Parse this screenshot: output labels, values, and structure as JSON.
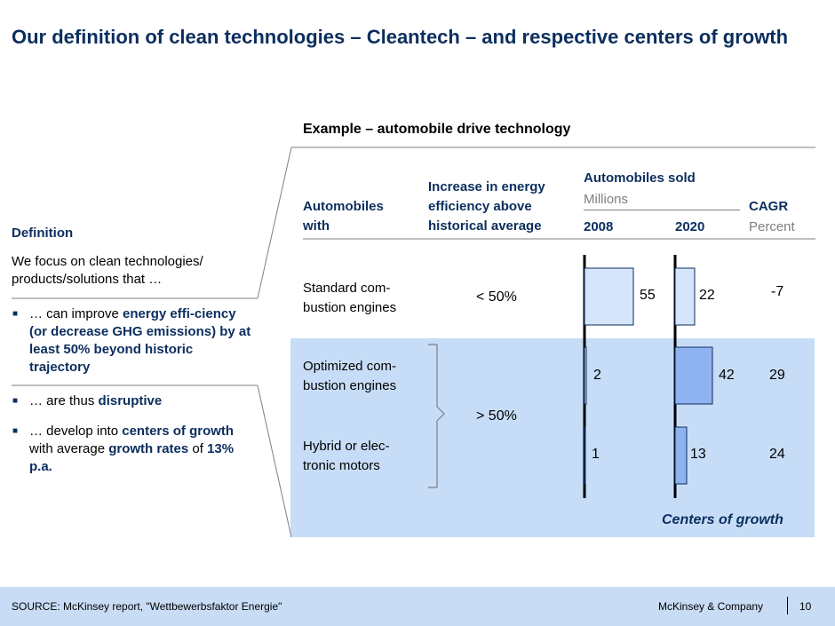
{
  "title": "Our definition of clean technologies – Cleantech – and respective centers of growth",
  "example_label": "Example – automobile drive technology",
  "headers": {
    "col1": "Automobiles with",
    "col2": "Increase in energy efficiency above historical average",
    "col3": "Automobiles sold",
    "col3_unit": "Millions",
    "year1": "2008",
    "year2": "2020",
    "col4": "CAGR",
    "col4_unit": "Percent"
  },
  "definition": {
    "title": "Definition",
    "intro": "We focus on clean technologies/ products/solutions that …",
    "bullets": [
      {
        "pre": "… can improve ",
        "hl": "energy effi-ciency (or decrease GHG emissions) by at least 50% beyond historic trajectory",
        "post": ""
      },
      {
        "pre": "… are thus ",
        "hl": "disruptive",
        "post": ""
      },
      {
        "pre": "… develop into ",
        "hl": "centers of growth",
        "post": " with average ",
        "hl2": "growth rates",
        "post2": " of ",
        "hl3": "13% p.a."
      }
    ]
  },
  "rows": [
    {
      "label_line1": "Standard com-",
      "label_line2": "bustion engines",
      "efficiency": "< 50%",
      "sold_2008": "55",
      "sold_2020": "22",
      "cagr": "-7"
    },
    {
      "label_line1": "Optimized com-",
      "label_line2": "bustion engines",
      "sold_2008": "2",
      "sold_2020": "42",
      "cagr": "29"
    },
    {
      "label_line1": "Hybrid or elec-",
      "label_line2": "tronic motors",
      "sold_2008": "1",
      "sold_2020": "13",
      "cagr": "24"
    }
  ],
  "group_efficiency": "> 50%",
  "centers_label": "Centers of growth",
  "chart_data": {
    "type": "bar",
    "categories": [
      "Standard combustion engines",
      "Optimized combustion engines",
      "Hybrid or electronic motors"
    ],
    "series": [
      {
        "name": "2008",
        "values": [
          55,
          2,
          1
        ]
      },
      {
        "name": "2020",
        "values": [
          22,
          42,
          13
        ]
      }
    ],
    "cagr_percent": [
      -7,
      29,
      24
    ]
  },
  "colors": {
    "title": "#0b2e5e",
    "highlight_bg": "#c7ddf7",
    "bar_light": "#d6e6fa",
    "bar_mid": "#8fb2f0",
    "footer_bg": "#c8dcf5"
  },
  "footer": {
    "source": "SOURCE: McKinsey report, \"Wettbewerbsfaktor Energie\"",
    "company": "McKinsey & Company",
    "page": "10"
  }
}
